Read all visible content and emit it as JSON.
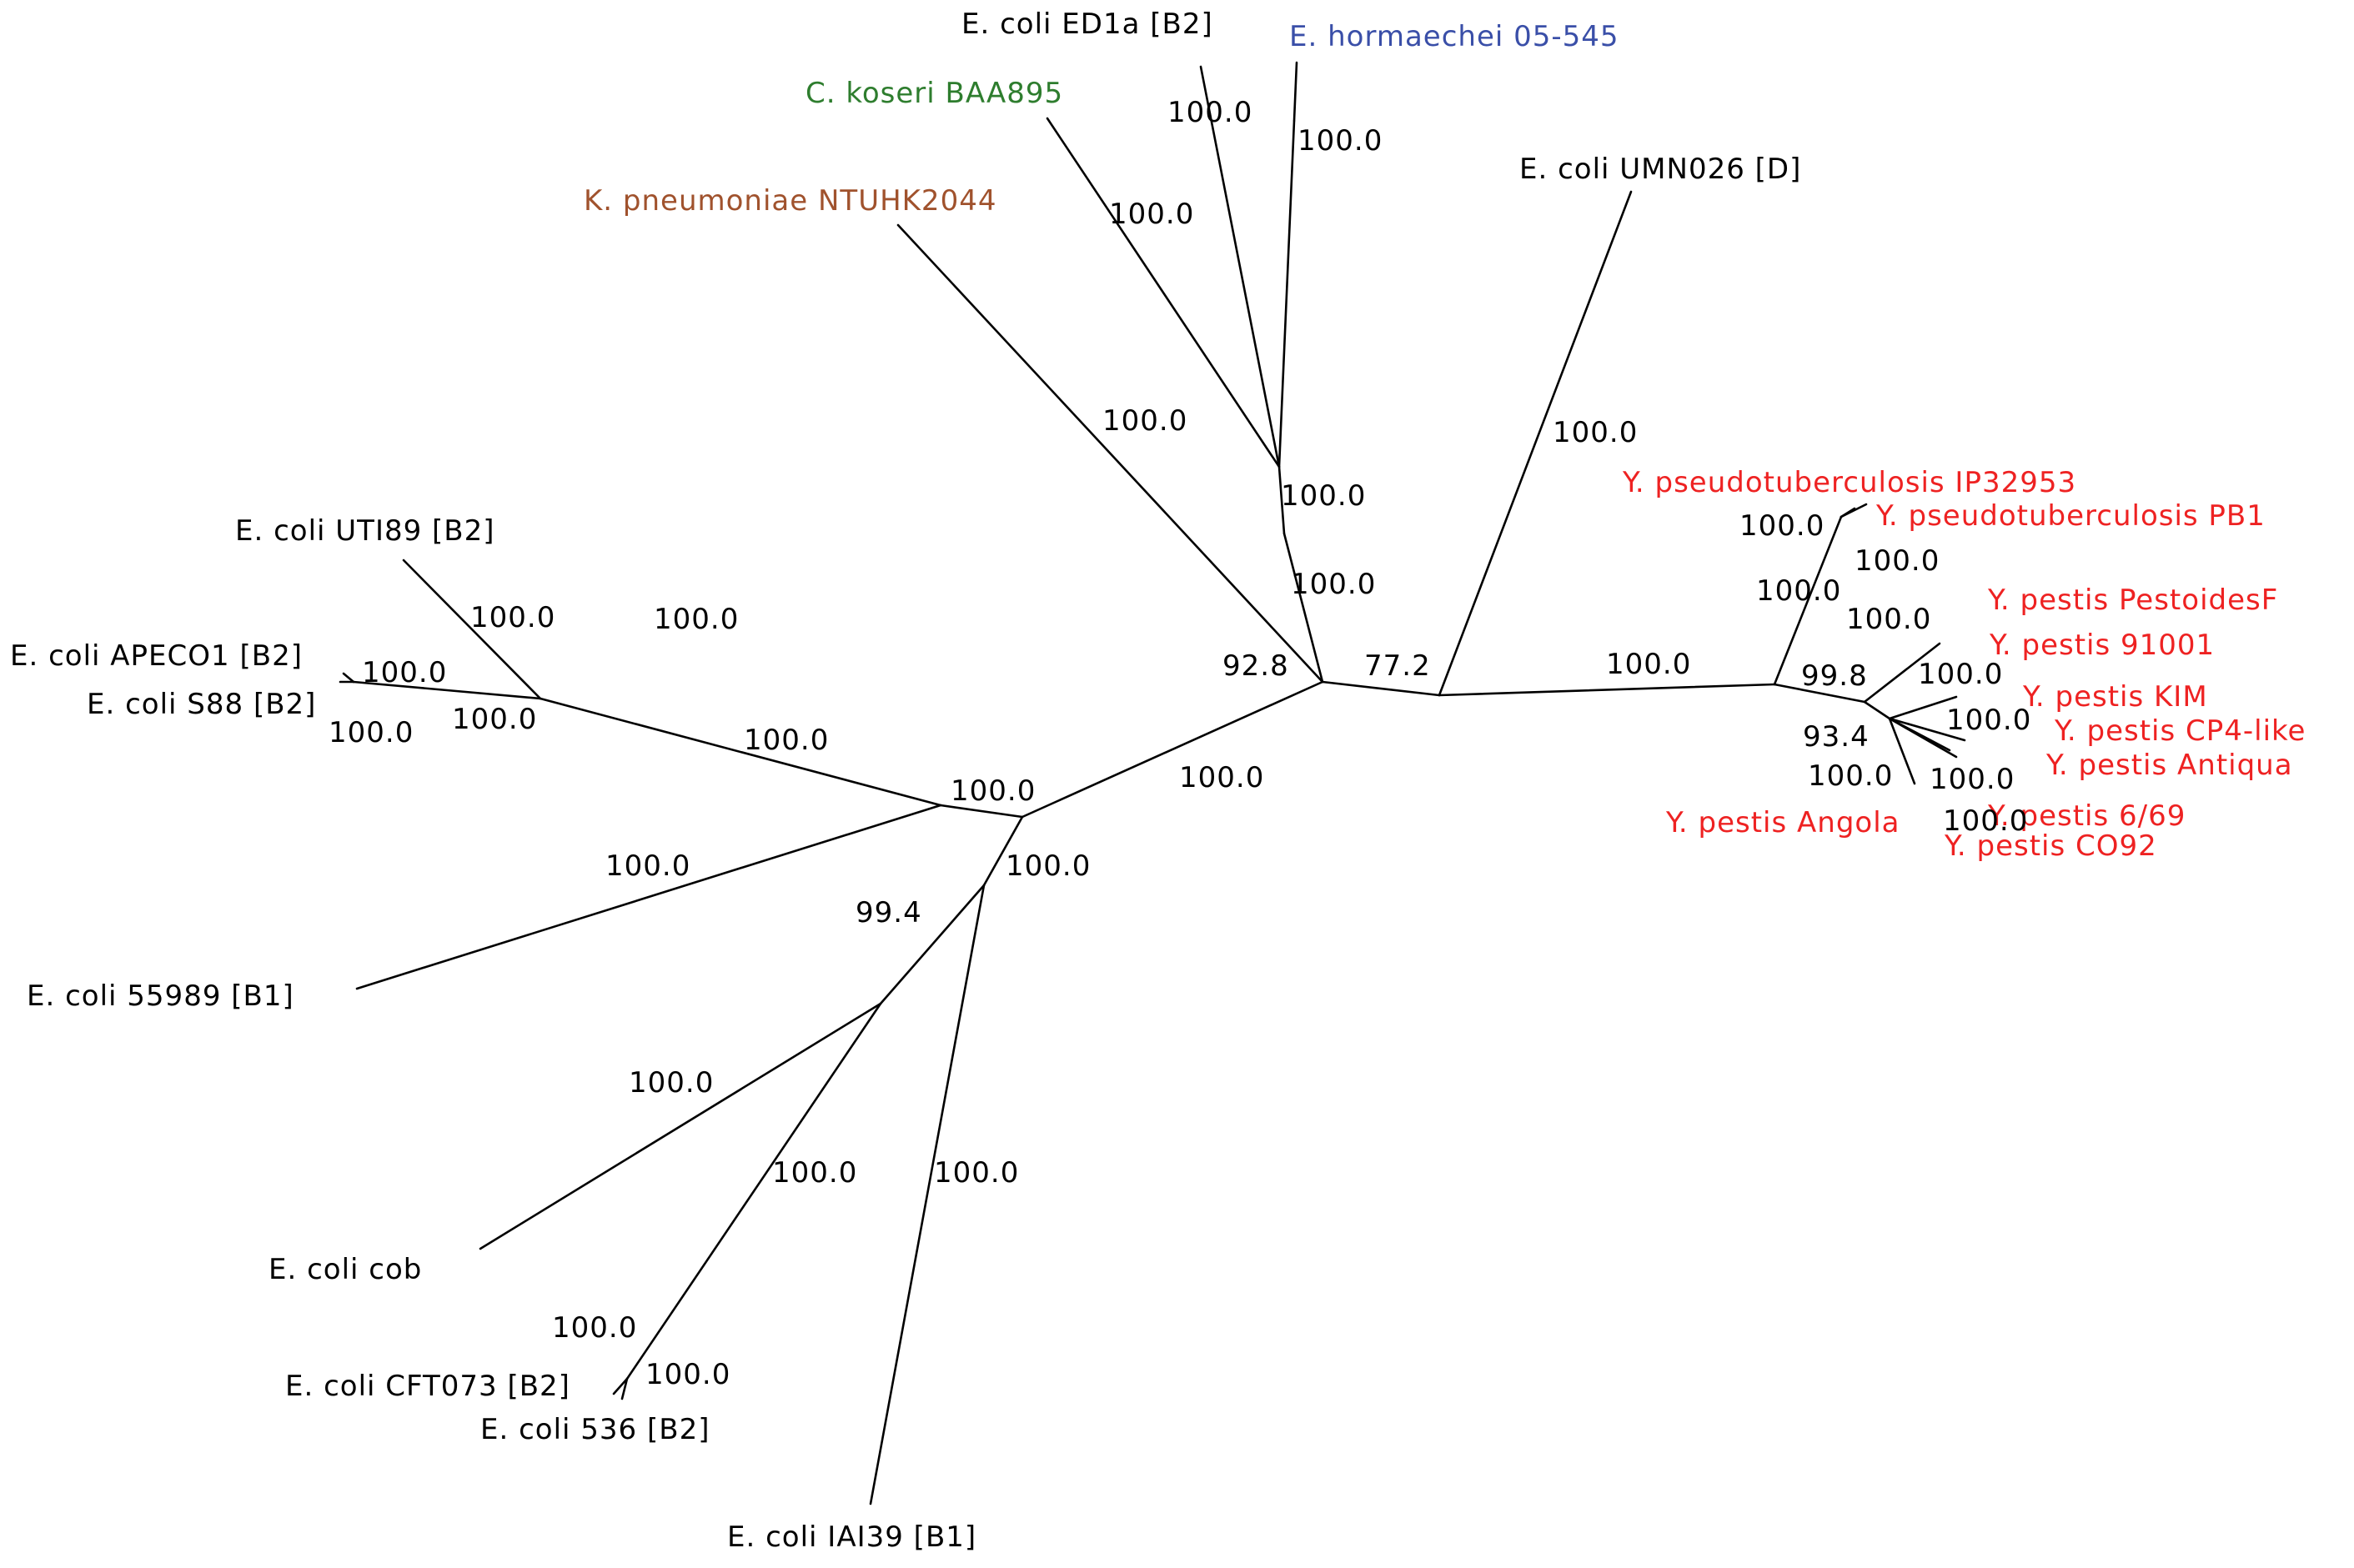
{
  "colors": {
    "default": "#000000",
    "citrobacter": "#2e7d2e",
    "enterobacter": "#3a4fa8",
    "klebsiella": "#a0522d",
    "yersinia": "#ee2222"
  },
  "taxa": [
    {
      "id": "t1",
      "label": "E. coli ED1a [B2]",
      "color": "default"
    },
    {
      "id": "t2",
      "label": "E. hormaechei 05-545",
      "color": "enterobacter"
    },
    {
      "id": "t3",
      "label": "C. koseri BAA895",
      "color": "citrobacter"
    },
    {
      "id": "t4",
      "label": "K. pneumoniae NTUHK2044",
      "color": "klebsiella"
    },
    {
      "id": "t5",
      "label": "E. coli UMN026 [D]",
      "color": "default"
    },
    {
      "id": "t6",
      "label": "Y. pseudotuberculosis IP32953",
      "color": "yersinia"
    },
    {
      "id": "t7",
      "label": "Y. pseudotuberculosis PB1",
      "color": "yersinia"
    },
    {
      "id": "t8",
      "label": "Y. pestis PestoidesF",
      "color": "yersinia"
    },
    {
      "id": "t9",
      "label": "Y. pestis 91001",
      "color": "yersinia"
    },
    {
      "id": "t10",
      "label": "Y. pestis KIM",
      "color": "yersinia"
    },
    {
      "id": "t11",
      "label": "Y. pestis CP4-like",
      "color": "yersinia"
    },
    {
      "id": "t12",
      "label": "Y. pestis Antiqua",
      "color": "yersinia"
    },
    {
      "id": "t13",
      "label": "Y. pestis 6/69",
      "color": "yersinia"
    },
    {
      "id": "t14",
      "label": "Y. pestis Angola",
      "color": "yersinia"
    },
    {
      "id": "t15",
      "label": "Y. pestis CO92",
      "color": "yersinia"
    },
    {
      "id": "t16",
      "label": "E. coli UTI89 [B2]",
      "color": "default"
    },
    {
      "id": "t17",
      "label": "E. coli APECO1 [B2]",
      "color": "default"
    },
    {
      "id": "t18",
      "label": "E. coli S88 [B2]",
      "color": "default"
    },
    {
      "id": "t19",
      "label": "E. coli 55989 [B1]",
      "color": "default"
    },
    {
      "id": "t20",
      "label": "E. coli cob",
      "color": "default"
    },
    {
      "id": "t21",
      "label": "E. coli CFT073 [B2]",
      "color": "default"
    },
    {
      "id": "t22",
      "label": "E. coli 536 [B2]",
      "color": "default"
    },
    {
      "id": "t23",
      "label": "E. coli IAI39 [B1]",
      "color": "default"
    }
  ],
  "bootstrap": [
    {
      "id": "b1",
      "value": "100.0"
    },
    {
      "id": "b2",
      "value": "100.0"
    },
    {
      "id": "b3",
      "value": "100.0"
    },
    {
      "id": "b4",
      "value": "100.0"
    },
    {
      "id": "b5",
      "value": "100.0"
    },
    {
      "id": "b6",
      "value": "100.0"
    },
    {
      "id": "b7",
      "value": "100.0"
    },
    {
      "id": "b8",
      "value": "100.0"
    },
    {
      "id": "b9",
      "value": "92.8"
    },
    {
      "id": "b10",
      "value": "77.2"
    },
    {
      "id": "b11",
      "value": "100.0"
    },
    {
      "id": "b12",
      "value": "100.0"
    },
    {
      "id": "b13",
      "value": "100.0"
    },
    {
      "id": "b14",
      "value": "100.0"
    },
    {
      "id": "b15",
      "value": "100.0"
    },
    {
      "id": "b16",
      "value": "100.0"
    },
    {
      "id": "b17",
      "value": "99.8"
    },
    {
      "id": "b18",
      "value": "100.0"
    },
    {
      "id": "b19",
      "value": "100.0"
    },
    {
      "id": "b20",
      "value": "93.4"
    },
    {
      "id": "b21",
      "value": "100.0"
    },
    {
      "id": "b22",
      "value": "100.0"
    },
    {
      "id": "b23",
      "value": "100.0"
    },
    {
      "id": "b24",
      "value": "100.0"
    },
    {
      "id": "b25",
      "value": "100.0"
    },
    {
      "id": "b26",
      "value": "100.0"
    },
    {
      "id": "b27",
      "value": "100.0"
    },
    {
      "id": "b28",
      "value": "100.0"
    },
    {
      "id": "b29",
      "value": "100.0"
    },
    {
      "id": "b30",
      "value": "100.0"
    },
    {
      "id": "b31",
      "value": "100.0"
    },
    {
      "id": "b32",
      "value": "99.4"
    },
    {
      "id": "b33",
      "value": "100.0"
    },
    {
      "id": "b34",
      "value": "100.0"
    },
    {
      "id": "b35",
      "value": "100.0"
    },
    {
      "id": "b36",
      "value": "100.0"
    },
    {
      "id": "b37",
      "value": "100.0"
    }
  ]
}
